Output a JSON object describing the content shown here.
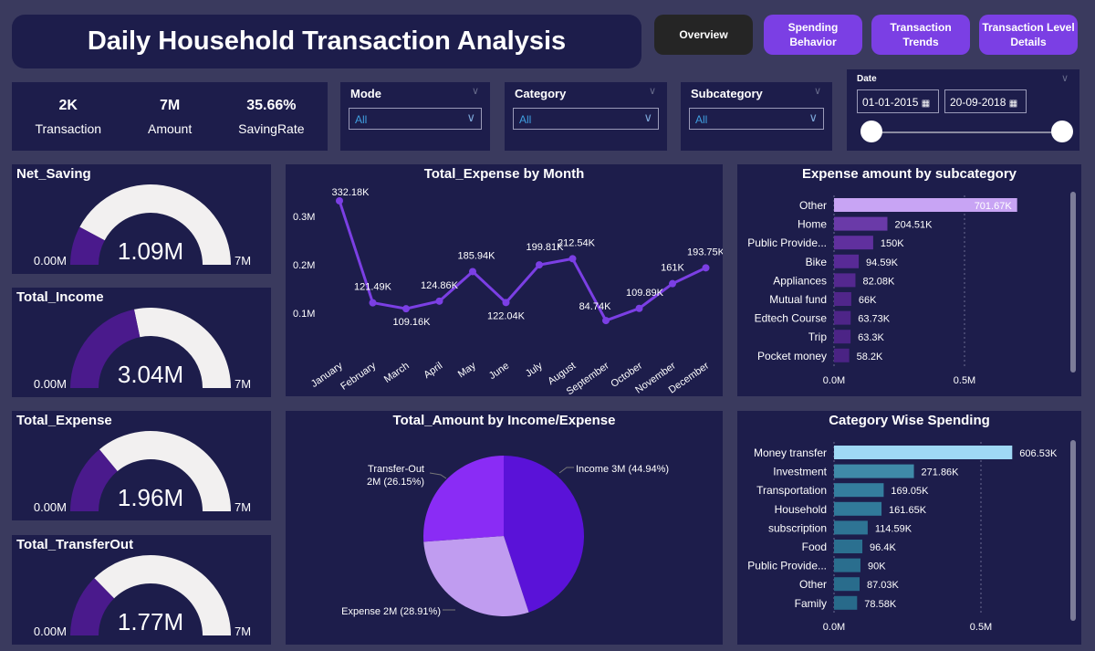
{
  "title": "Daily Household Transaction Analysis",
  "nav": [
    {
      "label": "Overview",
      "active": true
    },
    {
      "label": "Spending Behavior"
    },
    {
      "label": "Transaction Trends"
    },
    {
      "label": "Transaction Level Details"
    }
  ],
  "kpis": [
    {
      "value": "2K",
      "label": "Transaction"
    },
    {
      "value": "7M",
      "label": "Amount"
    },
    {
      "value": "35.66%",
      "label": "SavingRate"
    }
  ],
  "slicers": [
    {
      "label": "Mode",
      "value": "All"
    },
    {
      "label": "Category",
      "value": "All"
    },
    {
      "label": "Subcategory",
      "value": "All"
    }
  ],
  "date": {
    "label": "Date",
    "start": "01-01-2015",
    "end": "20-09-2018",
    "range_fraction": [
      0,
      1
    ]
  },
  "gauges": [
    {
      "title": "Net_Saving",
      "value": 1.09,
      "display": "1.09M",
      "min": "0.00M",
      "max": "7M",
      "max_value": 7
    },
    {
      "title": "Total_Income",
      "value": 3.04,
      "display": "3.04M",
      "min": "0.00M",
      "max": "7M",
      "max_value": 7
    },
    {
      "title": "Total_Expense",
      "value": 1.96,
      "display": "1.96M",
      "min": "0.00M",
      "max": "7M",
      "max_value": 7
    },
    {
      "title": "Total_TransferOut",
      "value": 1.77,
      "display": "1.77M",
      "min": "0.00M",
      "max": "7M",
      "max_value": 7
    }
  ],
  "colors": {
    "bg": "#3a3a5e",
    "panel": "#1d1d4b",
    "accent": "#7b3fe4",
    "gauge_fill": "#4a1a8c",
    "gauge_rest": "#f2f0f0",
    "line": "#7b3fe4"
  },
  "chart_data": [
    {
      "type": "line",
      "title": "Total_Expense by Month",
      "categories": [
        "January",
        "February",
        "March",
        "April",
        "May",
        "June",
        "July",
        "August",
        "September",
        "October",
        "November",
        "December"
      ],
      "values": [
        332.18,
        121.49,
        109.16,
        124.86,
        185.94,
        122.04,
        199.81,
        212.54,
        84.74,
        109.89,
        161,
        193.75
      ],
      "labels": [
        "332.18K",
        "121.49K",
        "109.16K",
        "124.86K",
        "185.94K",
        "122.04K",
        "199.81K",
        "212.54K",
        "84.74K",
        "109.89K",
        "161K",
        "193.75K"
      ],
      "yticks": [
        "0.1M",
        "0.2M",
        "0.3M"
      ],
      "ytick_values": [
        100,
        200,
        300
      ],
      "unit": "K"
    },
    {
      "type": "bar",
      "title": "Expense amount by subcategory",
      "categories": [
        "Other",
        "Home",
        "Public Provide...",
        "Bike",
        "Appliances",
        "Mutual fund",
        "Edtech Course",
        "Trip",
        "Pocket money"
      ],
      "values": [
        701.67,
        204.51,
        150,
        94.59,
        82.08,
        66,
        63.73,
        63.3,
        58.2
      ],
      "labels": [
        "701.67K",
        "204.51K",
        "150K",
        "94.59K",
        "82.08K",
        "66K",
        "63.73K",
        "63.3K",
        "58.2K"
      ],
      "xticks": [
        "0.0M",
        "0.5M"
      ],
      "xtick_values": [
        0,
        500
      ]
    },
    {
      "type": "pie",
      "title": "Total_Amount by Income/Expense",
      "slices": [
        {
          "name": "Income",
          "value": 44.94,
          "label": "Income 3M (44.94%)",
          "color": "#5a12d8"
        },
        {
          "name": "Expense",
          "value": 28.91,
          "label": "Expense 2M (28.91%)",
          "color": "#c09cf0"
        },
        {
          "name": "Transfer-Out",
          "value": 26.15,
          "label": "Transfer-Out",
          "label2": "2M (26.15%)",
          "color": "#8a2cf5"
        }
      ]
    },
    {
      "type": "bar",
      "title": "Category Wise Spending",
      "categories": [
        "Money transfer",
        "Investment",
        "Transportation",
        "Household",
        "subscription",
        "Food",
        "Public Provide...",
        "Other",
        "Family"
      ],
      "values": [
        606.53,
        271.86,
        169.05,
        161.65,
        114.59,
        96.4,
        90,
        87.03,
        78.58
      ],
      "labels": [
        "606.53K",
        "271.86K",
        "169.05K",
        "161.65K",
        "114.59K",
        "96.4K",
        "90K",
        "87.03K",
        "78.58K"
      ],
      "xticks": [
        "0.0M",
        "0.5M"
      ],
      "xtick_values": [
        0,
        500
      ]
    }
  ]
}
